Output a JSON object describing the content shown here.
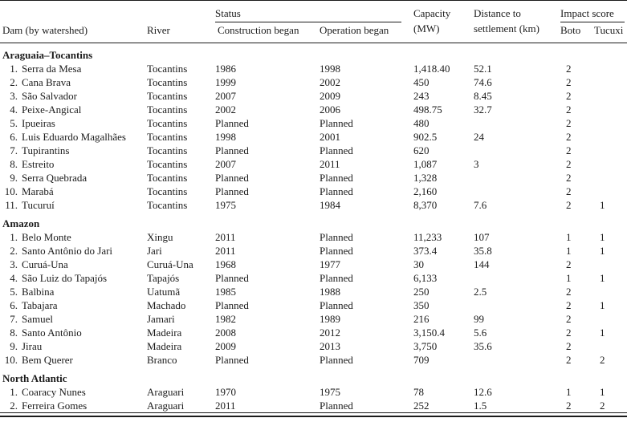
{
  "colors": {
    "text": "#1b1b1b",
    "background": "#ffffff",
    "rule": "#1b1b1b"
  },
  "table": {
    "header": {
      "dam": "Dam (by watershed)",
      "river": "River",
      "status_group": "Status",
      "construction": "Construction began",
      "operation": "Operation began",
      "capacity_line1": "Capacity",
      "capacity_line2": "(MW)",
      "distance_line1": "Distance to",
      "distance_line2": "settlement (km)",
      "impact_group": "Impact score",
      "boto": "Boto",
      "tucuxi": "Tucuxi"
    },
    "sections": [
      {
        "name": "Araguaia–Tocantins",
        "rows": [
          {
            "num": "1.",
            "dam": "Serra da Mesa",
            "river": "Tocantins",
            "construction": "1986",
            "operation": "1998",
            "capacity": "1,418.40",
            "distance": "52.1",
            "boto": "2",
            "tucuxi": ""
          },
          {
            "num": "2.",
            "dam": "Cana Brava",
            "river": "Tocantins",
            "construction": "1999",
            "operation": "2002",
            "capacity": "450",
            "distance": "74.6",
            "boto": "2",
            "tucuxi": ""
          },
          {
            "num": "3.",
            "dam": "São Salvador",
            "river": "Tocantins",
            "construction": "2007",
            "operation": "2009",
            "capacity": "243",
            "distance": "8.45",
            "boto": "2",
            "tucuxi": ""
          },
          {
            "num": "4.",
            "dam": "Peixe-Angical",
            "river": "Tocantins",
            "construction": "2002",
            "operation": "2006",
            "capacity": "498.75",
            "distance": "32.7",
            "boto": "2",
            "tucuxi": ""
          },
          {
            "num": "5.",
            "dam": "Ipueiras",
            "river": "Tocantins",
            "construction": "Planned",
            "operation": "Planned",
            "capacity": "480",
            "distance": "",
            "boto": "2",
            "tucuxi": ""
          },
          {
            "num": "6.",
            "dam": "Luis Eduardo Magalhães",
            "river": "Tocantins",
            "construction": "1998",
            "operation": "2001",
            "capacity": "902.5",
            "distance": "24",
            "boto": "2",
            "tucuxi": ""
          },
          {
            "num": "7.",
            "dam": "Tupirantins",
            "river": "Tocantins",
            "construction": "Planned",
            "operation": "Planned",
            "capacity": "620",
            "distance": "",
            "boto": "2",
            "tucuxi": ""
          },
          {
            "num": "8.",
            "dam": "Estreito",
            "river": "Tocantins",
            "construction": "2007",
            "operation": "2011",
            "capacity": "1,087",
            "distance": "3",
            "boto": "2",
            "tucuxi": ""
          },
          {
            "num": "9.",
            "dam": "Serra Quebrada",
            "river": "Tocantins",
            "construction": "Planned",
            "operation": "Planned",
            "capacity": "1,328",
            "distance": "",
            "boto": "2",
            "tucuxi": ""
          },
          {
            "num": "10.",
            "dam": "Marabá",
            "river": "Tocantins",
            "construction": "Planned",
            "operation": "Planned",
            "capacity": "2,160",
            "distance": "",
            "boto": "2",
            "tucuxi": ""
          },
          {
            "num": "11.",
            "dam": "Tucuruí",
            "river": "Tocantins",
            "construction": "1975",
            "operation": "1984",
            "capacity": "8,370",
            "distance": "7.6",
            "boto": "2",
            "tucuxi": "1"
          }
        ]
      },
      {
        "name": "Amazon",
        "rows": [
          {
            "num": "1.",
            "dam": "Belo Monte",
            "river": "Xingu",
            "construction": "2011",
            "operation": "Planned",
            "capacity": "11,233",
            "distance": "107",
            "boto": "1",
            "tucuxi": "1"
          },
          {
            "num": "2.",
            "dam": "Santo Antônio do Jari",
            "river": "Jari",
            "construction": "2011",
            "operation": "Planned",
            "capacity": "373.4",
            "distance": "35.8",
            "boto": "1",
            "tucuxi": "1"
          },
          {
            "num": "3.",
            "dam": "Curuá-Una",
            "river": "Curuá-Una",
            "construction": "1968",
            "operation": "1977",
            "capacity": "30",
            "distance": "144",
            "boto": "2",
            "tucuxi": ""
          },
          {
            "num": "4.",
            "dam": "São Luiz do Tapajós",
            "river": "Tapajós",
            "construction": "Planned",
            "operation": "Planned",
            "capacity": "6,133",
            "distance": "",
            "boto": "1",
            "tucuxi": "1"
          },
          {
            "num": "5.",
            "dam": "Balbina",
            "river": "Uatumã",
            "construction": "1985",
            "operation": "1988",
            "capacity": "250",
            "distance": "2.5",
            "boto": "2",
            "tucuxi": ""
          },
          {
            "num": "6.",
            "dam": "Tabajara",
            "river": "Machado",
            "construction": "Planned",
            "operation": "Planned",
            "capacity": "350",
            "distance": "",
            "boto": "2",
            "tucuxi": "1"
          },
          {
            "num": "7.",
            "dam": "Samuel",
            "river": "Jamari",
            "construction": "1982",
            "operation": "1989",
            "capacity": "216",
            "distance": "99",
            "boto": "2",
            "tucuxi": ""
          },
          {
            "num": "8.",
            "dam": "Santo Antônio",
            "river": "Madeira",
            "construction": "2008",
            "operation": "2012",
            "capacity": "3,150.4",
            "distance": "5.6",
            "boto": "2",
            "tucuxi": "1"
          },
          {
            "num": "9.",
            "dam": "Jirau",
            "river": "Madeira",
            "construction": "2009",
            "operation": "2013",
            "capacity": "3,750",
            "distance": "35.6",
            "boto": "2",
            "tucuxi": ""
          },
          {
            "num": "10.",
            "dam": "Bem Querer",
            "river": "Branco",
            "construction": "Planned",
            "operation": "Planned",
            "capacity": "709",
            "distance": "",
            "boto": "2",
            "tucuxi": "2"
          }
        ]
      },
      {
        "name": "North Atlantic",
        "rows": [
          {
            "num": "1.",
            "dam": "Coaracy Nunes",
            "river": "Araguari",
            "construction": "1970",
            "operation": "1975",
            "capacity": "78",
            "distance": "12.6",
            "boto": "1",
            "tucuxi": "1"
          },
          {
            "num": "2.",
            "dam": "Ferreira Gomes",
            "river": "Araguari",
            "construction": "2011",
            "operation": "Planned",
            "capacity": "252",
            "distance": "1.5",
            "boto": "2",
            "tucuxi": "2"
          }
        ]
      }
    ]
  }
}
